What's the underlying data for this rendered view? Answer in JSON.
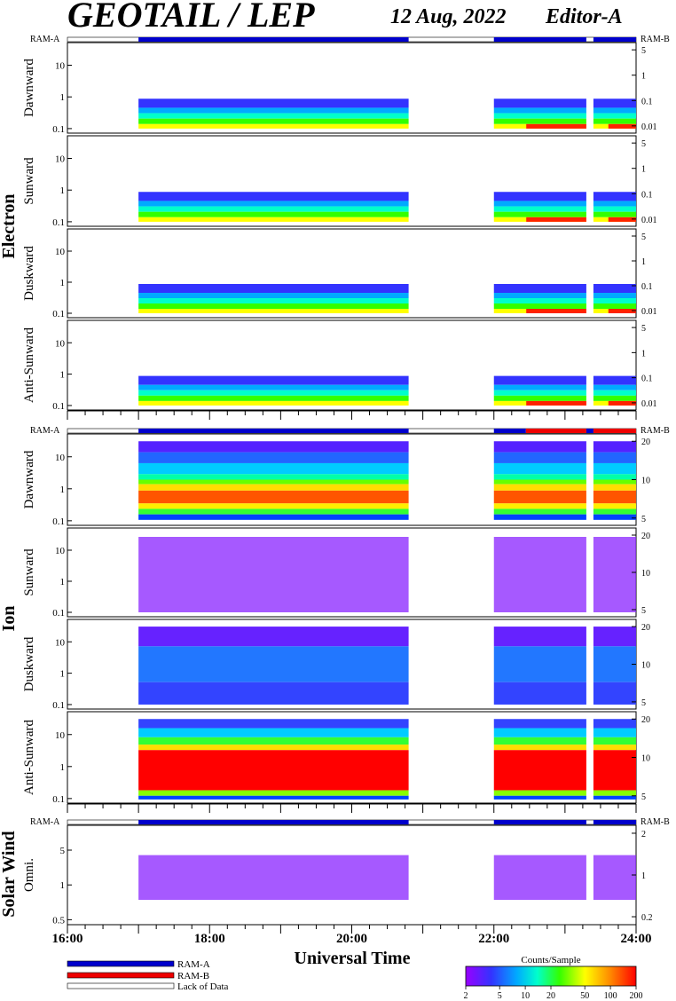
{
  "title": "GEOTAIL / LEP",
  "date": "12 Aug, 2022",
  "editor": "Editor-A",
  "xlabel": "Universal Time",
  "x_ticks": [
    "16:00",
    "18:00",
    "20:00",
    "22:00",
    "24:00"
  ],
  "groups": [
    {
      "name": "Electron",
      "panels": [
        {
          "label": "Dawnward",
          "left_ticks": [
            "10",
            "1",
            "0.1"
          ],
          "right_ticks": [
            "5",
            "1",
            "0.1",
            "0.01"
          ]
        },
        {
          "label": "Sunward",
          "left_ticks": [
            "10",
            "1",
            "0.1"
          ],
          "right_ticks": [
            "5",
            "1",
            "0.1",
            "0.01"
          ]
        },
        {
          "label": "Duskward",
          "left_ticks": [
            "10",
            "1",
            "0.1"
          ],
          "right_ticks": [
            "5",
            "1",
            "0.1",
            "0.01"
          ]
        },
        {
          "label": "Anti-Sunward",
          "left_ticks": [
            "10",
            "1",
            "0.1"
          ],
          "right_ticks": [
            "5",
            "1",
            "0.1",
            "0.01"
          ]
        }
      ]
    },
    {
      "name": "Ion",
      "panels": [
        {
          "label": "Dawnward",
          "left_ticks": [
            "10",
            "1",
            "0.1"
          ],
          "right_ticks": [
            "20",
            "10",
            "5"
          ]
        },
        {
          "label": "Sunward",
          "left_ticks": [
            "10",
            "1",
            "0.1"
          ],
          "right_ticks": [
            "20",
            "10",
            "5"
          ]
        },
        {
          "label": "Duskward",
          "left_ticks": [
            "10",
            "1",
            "0.1"
          ],
          "right_ticks": [
            "20",
            "10",
            "5"
          ]
        },
        {
          "label": "Anti-Sunward",
          "left_ticks": [
            "10",
            "1",
            "0.1"
          ],
          "right_ticks": [
            "20",
            "10",
            "5"
          ]
        }
      ]
    },
    {
      "name": "Solar Wind",
      "panels": [
        {
          "label": "Omni.",
          "left_ticks": [
            "5",
            "1",
            "0.5"
          ],
          "right_ticks": [
            "2",
            "1",
            "0.2"
          ]
        }
      ]
    }
  ],
  "mode_bar": {
    "left_label": "RAM-A",
    "right_label": "RAM-B",
    "electron": [
      {
        "start": 17.0,
        "end": 20.8,
        "mode": "A"
      },
      {
        "start": 22.0,
        "end": 23.3,
        "mode": "A"
      },
      {
        "start": 23.4,
        "end": 24.0,
        "mode": "A"
      }
    ],
    "ion": [
      {
        "start": 17.0,
        "end": 20.8,
        "mode": "A"
      },
      {
        "start": 22.0,
        "end": 22.45,
        "mode": "A"
      },
      {
        "start": 22.45,
        "end": 23.3,
        "mode": "B"
      },
      {
        "start": 23.3,
        "end": 23.4,
        "mode": "A"
      },
      {
        "start": 23.4,
        "end": 24.0,
        "mode": "B"
      }
    ],
    "solar": [
      {
        "start": 17.0,
        "end": 20.8,
        "mode": "A"
      },
      {
        "start": 22.0,
        "end": 23.3,
        "mode": "A"
      },
      {
        "start": 23.4,
        "end": 24.0,
        "mode": "A"
      }
    ]
  },
  "legend": {
    "ram_a": "RAM-A",
    "ram_b": "RAM-B",
    "lack": "Lack of Data"
  },
  "colorbar": {
    "title": "Counts/Sample",
    "ticks": [
      "2",
      "5",
      "10",
      "20",
      "50",
      "100",
      "200"
    ]
  },
  "chart_data": {
    "type": "heatmap",
    "title": "GEOTAIL / LEP",
    "xlabel": "Universal Time",
    "x_range_hours": [
      16,
      24
    ],
    "data_intervals_hours": [
      [
        17.0,
        20.8
      ],
      [
        22.0,
        23.3
      ],
      [
        23.4,
        24.0
      ]
    ],
    "colors": {
      "ram_a": "#0000cc",
      "ram_b": "#ee0000"
    }
  }
}
